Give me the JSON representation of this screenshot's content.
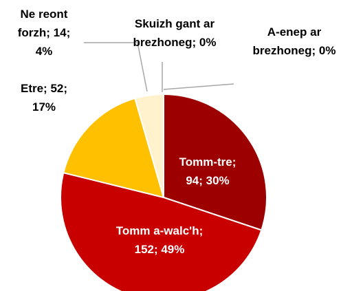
{
  "chart_data": {
    "type": "pie",
    "values": [
      94,
      152,
      52,
      14,
      0,
      0
    ],
    "value_labels": [
      "Tomm-tre;\n94; 30%",
      "Tomm a-walc'h;\n152; 49%",
      "Etre; 52;\n17%",
      "Ne reont\nforzh; 14;\n4%",
      "Skuizh gant ar\nbrezhoneg; 0%",
      "A-enep ar\nbrezhoneg;  0%"
    ],
    "colors": [
      "#9c0000",
      "#c80000",
      "#ffc000",
      "#fff2cc",
      "#ffffff",
      "#ffffff"
    ]
  }
}
